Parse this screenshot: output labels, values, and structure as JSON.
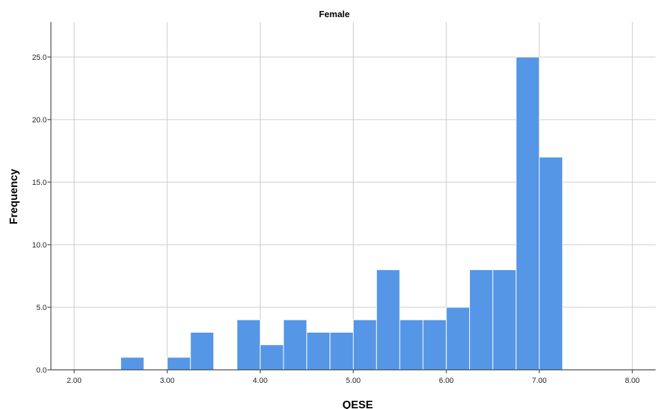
{
  "chart_data": {
    "type": "bar",
    "title": "Female",
    "xlabel": "QESE",
    "ylabel": "Frequency",
    "xlim": [
      1.75,
      8.25
    ],
    "ylim": [
      0,
      27.8
    ],
    "x_ticks": [
      "2.00",
      "3.00",
      "4.00",
      "5.00",
      "6.00",
      "7.00",
      "8.00"
    ],
    "x_tick_values": [
      2,
      3,
      4,
      5,
      6,
      7,
      8
    ],
    "y_ticks": [
      "0.0",
      "5.0",
      "10.0",
      "15.0",
      "20.0",
      "25.0"
    ],
    "y_tick_values": [
      0,
      5,
      10,
      15,
      20,
      25
    ],
    "grid": true,
    "bar_color": "#5596e6",
    "bin_width": 0.25,
    "bins": [
      {
        "x_start": 2.5,
        "x_end": 2.75,
        "value": 1
      },
      {
        "x_start": 3.0,
        "x_end": 3.25,
        "value": 1
      },
      {
        "x_start": 3.25,
        "x_end": 3.5,
        "value": 3
      },
      {
        "x_start": 3.75,
        "x_end": 4.0,
        "value": 4
      },
      {
        "x_start": 4.0,
        "x_end": 4.25,
        "value": 2
      },
      {
        "x_start": 4.25,
        "x_end": 4.5,
        "value": 4
      },
      {
        "x_start": 4.5,
        "x_end": 4.75,
        "value": 3
      },
      {
        "x_start": 4.75,
        "x_end": 5.0,
        "value": 3
      },
      {
        "x_start": 5.0,
        "x_end": 5.25,
        "value": 4
      },
      {
        "x_start": 5.25,
        "x_end": 5.5,
        "value": 8
      },
      {
        "x_start": 5.5,
        "x_end": 5.75,
        "value": 4
      },
      {
        "x_start": 5.75,
        "x_end": 6.0,
        "value": 4
      },
      {
        "x_start": 6.0,
        "x_end": 6.25,
        "value": 5
      },
      {
        "x_start": 6.25,
        "x_end": 6.5,
        "value": 8
      },
      {
        "x_start": 6.5,
        "x_end": 6.75,
        "value": 8
      },
      {
        "x_start": 6.75,
        "x_end": 7.0,
        "value": 25
      },
      {
        "x_start": 7.0,
        "x_end": 7.25,
        "value": 17
      }
    ]
  }
}
